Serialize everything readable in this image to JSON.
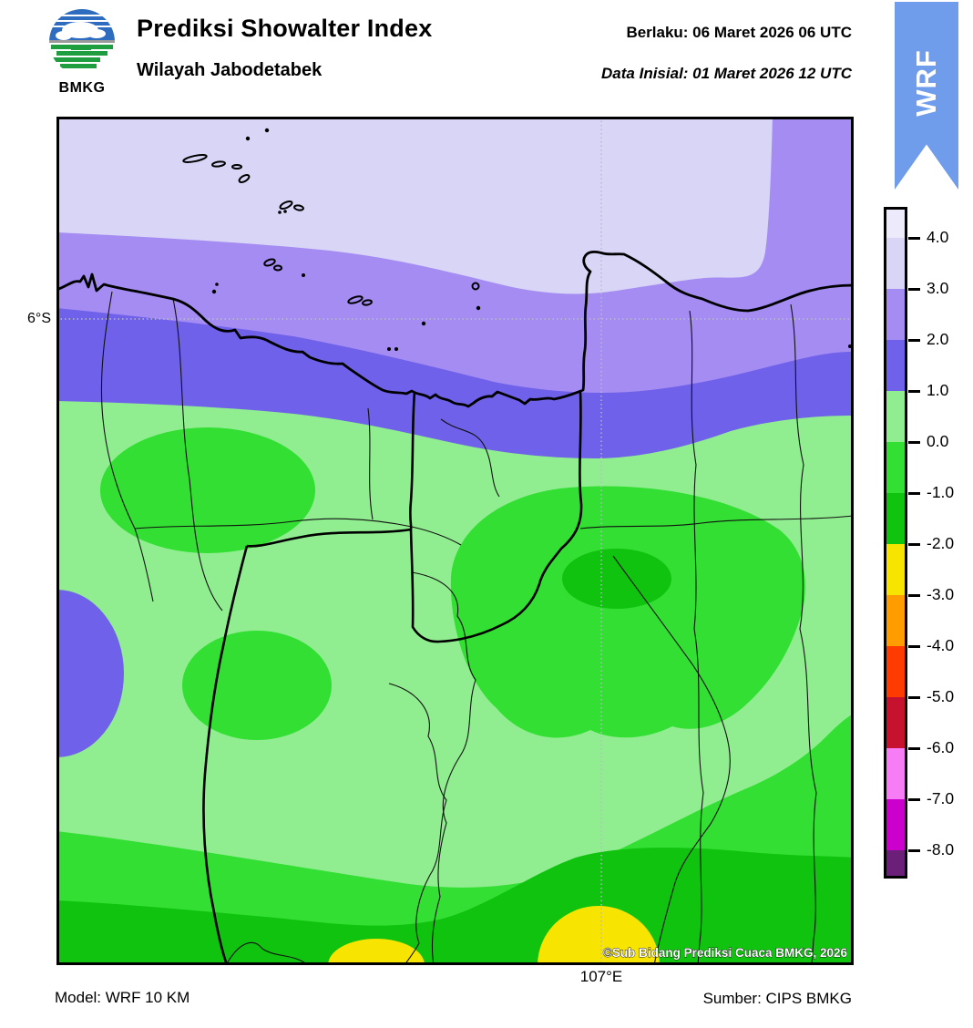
{
  "header": {
    "logo_text": "BMKG",
    "title": "Prediksi Showalter Index",
    "subtitle": "Wilayah Jabodetabek",
    "valid_label": "Berlaku:",
    "valid_value": "06 Maret 2026 06 UTC",
    "valid_line": "Berlaku:  06 Maret 2026 06 UTC",
    "init_label": "Data Inisial:",
    "init_value": "01 Maret 2026 12 UTC",
    "init_line": "Data Inisial:  01 Maret 2026 12 UTC"
  },
  "ribbon": {
    "label": "WRF",
    "color": "#6f9ceb"
  },
  "map": {
    "lat_label": "6°S",
    "lon_label": "107°E",
    "copyright": "©Sub Bidang Prediksi Cuaca BMKG, 2026"
  },
  "footer": {
    "model": "Model: WRF 10 KM",
    "source": "Sumber: CIPS BMKG"
  },
  "palette": {
    "p4plus": "#edebfb",
    "p3_4": "#d8d5f6",
    "p2_3": "#a58cf2",
    "p1_2": "#6f61e9",
    "p0_1": "#90ee90",
    "pm1_0": "#32df32",
    "pm2_m1": "#0fc30f",
    "pm3_m2": "#f7e400",
    "pm4_m3": "#ff9c00",
    "pm5_m4": "#fe3b00",
    "pm6_m5": "#c6122e",
    "pm7_m6": "#f77df7",
    "pm8_m7": "#cc00cc",
    "pm8minus": "#6b1f78",
    "coast_line": "#000000",
    "grid_dotted": "#b9b9c9",
    "ribbon_blue": "#6f9ceb"
  },
  "colorbar": {
    "tick_labels": [
      "4.0",
      "3.0",
      "2.0",
      "1.0",
      "0.0",
      "-1.0",
      "-2.0",
      "-3.0",
      "-4.0",
      "-5.0",
      "-6.0",
      "-7.0",
      "-8.0"
    ],
    "segment_colors": [
      "#edebfb",
      "#d8d5f6",
      "#a58cf2",
      "#6f61e9",
      "#90ee90",
      "#32df32",
      "#0fc30f",
      "#f7e400",
      "#ff9c00",
      "#fe3b00",
      "#c6122e",
      "#f77df7",
      "#cc00cc",
      "#6b1f78"
    ],
    "segment_heights": [
      31,
      56,
      56,
      56,
      56,
      56,
      56,
      56,
      56,
      56,
      56,
      56,
      56,
      28
    ]
  },
  "chart_data": {
    "type": "filled_contour_map",
    "title": "Prediksi Showalter Index",
    "region": "Wilayah Jabodetabek",
    "model": "WRF 10 KM",
    "source": "CIPS BMKG",
    "valid_time": "06 Maret 2026 06 UTC",
    "initial_time": "01 Maret 2026 12 UTC",
    "contour_levels": [
      4.0,
      3.0,
      2.0,
      1.0,
      0.0,
      -1.0,
      -2.0,
      -3.0,
      -4.0,
      -5.0,
      -6.0,
      -7.0,
      -8.0
    ],
    "gridline_labels": {
      "latitude": "6°S",
      "longitude": "107°E"
    },
    "value_range_shown_on_map": [
      -3,
      4
    ],
    "bands_north_to_south": [
      {
        "range": "3 to 4",
        "color": "#d8d5f6",
        "where": "sea at top of map; large pale lobe, bounded east by 2-3 purple at top-right corner"
      },
      {
        "range": "2 to 3",
        "color": "#a58cf2",
        "where": "band across sea near coastline and along right edge at top"
      },
      {
        "range": "1 to 2",
        "color": "#6f61e9",
        "where": "band over coast / Jakarta bay; small blob on west edge mid-map"
      },
      {
        "range": "0 to 1",
        "color": "#90ee90",
        "where": "most inland area"
      },
      {
        "range": "-1 to 0",
        "color": "#32df32",
        "where": "west-central ellipse, large central-east lobe, lower-west ellipse, southern band"
      },
      {
        "range": "-2 to -1",
        "color": "#0fc30f",
        "where": "core inside central-east lobe and southernmost band"
      },
      {
        "range": "-3 to -2",
        "color": "#f7e400",
        "where": "two blobs on bottom edge"
      }
    ]
  }
}
